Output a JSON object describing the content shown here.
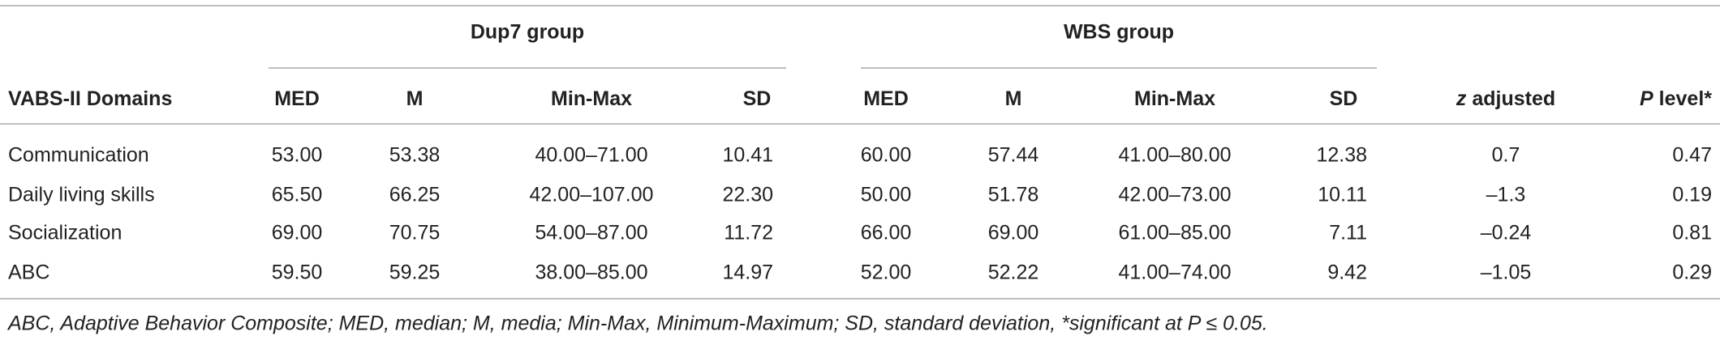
{
  "table": {
    "groups": [
      "Dup7 group",
      "WBS group"
    ],
    "columns": [
      [
        {
          "text": "VABS-II Domains"
        }
      ],
      [
        {
          "text": "MED"
        }
      ],
      [
        {
          "text": "M"
        }
      ],
      [
        {
          "text": "Min-Max"
        }
      ],
      [
        {
          "text": "SD"
        }
      ],
      [
        {
          "text": "MED"
        }
      ],
      [
        {
          "text": "M"
        }
      ],
      [
        {
          "text": "Min-Max"
        }
      ],
      [
        {
          "text": "SD"
        }
      ],
      [
        {
          "text": "z",
          "italic": true
        },
        {
          "text": " adjusted"
        }
      ],
      [
        {
          "text": "P",
          "italic": true
        },
        {
          "text": " level*"
        }
      ]
    ],
    "rows": [
      [
        "Communication",
        "53.00",
        "53.38",
        "40.00–71.00",
        "10.41",
        "60.00",
        "57.44",
        "41.00–80.00",
        "12.38",
        "0.7",
        "0.47"
      ],
      [
        "Daily living skills",
        "65.50",
        "66.25",
        "42.00–107.00",
        "22.30",
        "50.00",
        "51.78",
        "42.00–73.00",
        "10.11",
        "–1.3",
        "0.19"
      ],
      [
        "Socialization",
        "69.00",
        "70.75",
        "54.00–87.00",
        "11.72",
        "66.00",
        "69.00",
        "61.00–85.00",
        "7.11",
        "–0.24",
        "0.81"
      ],
      [
        "ABC",
        "59.50",
        "59.25",
        "38.00–85.00",
        "14.97",
        "52.00",
        "52.22",
        "41.00–74.00",
        "9.42",
        "–1.05",
        "0.29"
      ]
    ]
  },
  "footnote": "ABC, Adaptive Behavior Composite; MED, median; M, media; Min-Max, Minimum-Maximum; SD, standard deviation, *significant at P ≤ 0.05."
}
